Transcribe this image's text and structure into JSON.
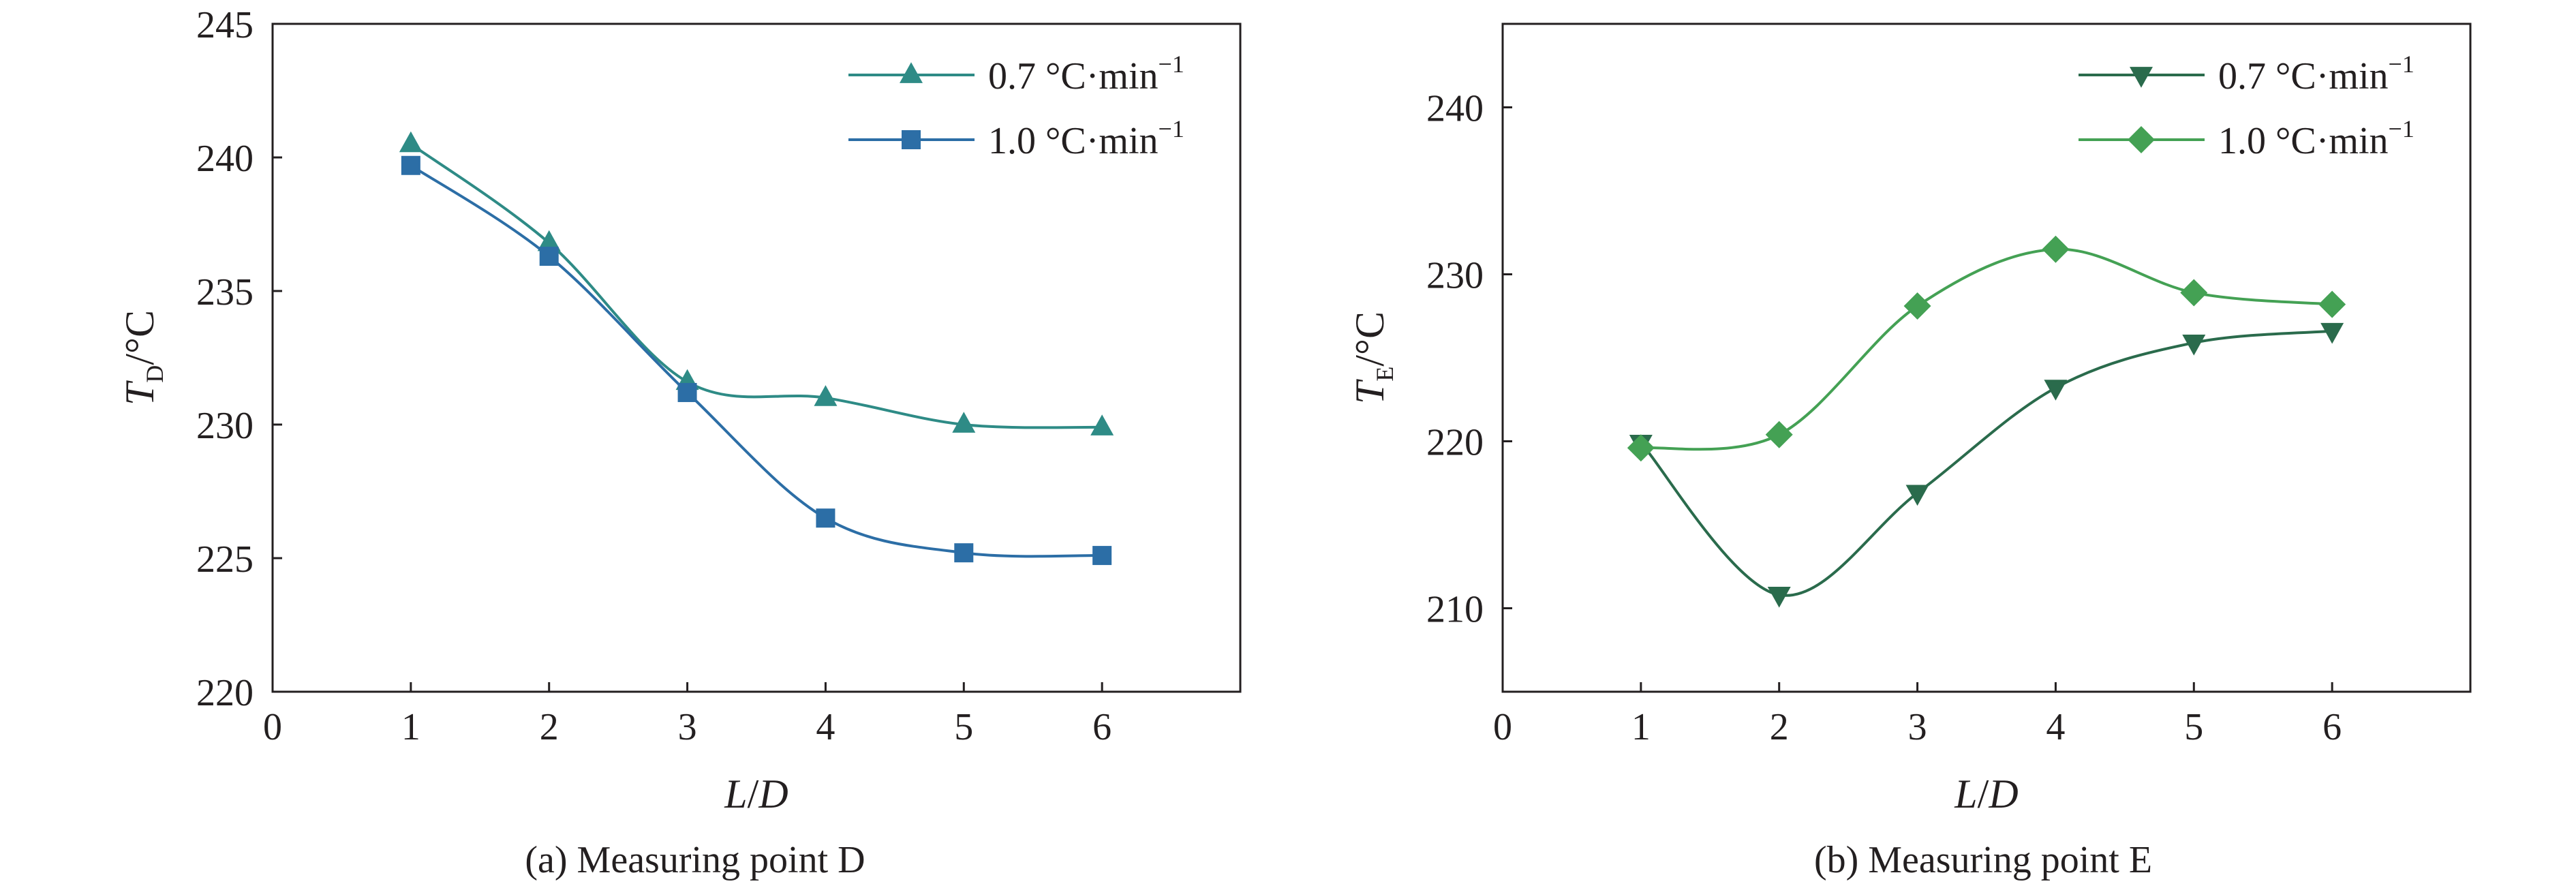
{
  "chart_data": [
    {
      "type": "line",
      "id": "a",
      "caption": "(a) Measuring point D",
      "xlabel": {
        "italic": "L",
        "plain": "/",
        "italic2": "D"
      },
      "ylabel": {
        "italic": "T",
        "sub": "D",
        "unit": "/°C"
      },
      "xlim": [
        0,
        7
      ],
      "ylim": [
        220,
        245
      ],
      "xticks": [
        0,
        1,
        2,
        3,
        4,
        5,
        6
      ],
      "yticks": [
        220,
        225,
        230,
        235,
        240,
        245
      ],
      "legend_position": "top-right",
      "series": [
        {
          "name": "0.7 °C·min",
          "sup": "−1",
          "marker": "triangle-up",
          "color": "#2e8b86",
          "x": [
            1,
            2,
            3,
            4,
            5,
            6
          ],
          "y": [
            240.5,
            236.8,
            231.6,
            231.0,
            230.0,
            229.9
          ]
        },
        {
          "name": "1.0 °C·min",
          "sup": "−1",
          "marker": "square",
          "color": "#2c6ea6",
          "x": [
            1,
            2,
            3,
            4,
            5,
            6
          ],
          "y": [
            239.7,
            236.3,
            231.2,
            226.5,
            225.2,
            225.1
          ]
        }
      ]
    },
    {
      "type": "line",
      "id": "b",
      "caption": "(b) Measuring point E",
      "xlabel": {
        "italic": "L",
        "plain": "/",
        "italic2": "D"
      },
      "ylabel": {
        "italic": "T",
        "sub": "E",
        "unit": "/°C"
      },
      "xlim": [
        0,
        7
      ],
      "ylim": [
        205,
        245
      ],
      "xticks": [
        0,
        1,
        2,
        3,
        4,
        5,
        6
      ],
      "yticks": [
        210,
        220,
        230,
        240
      ],
      "legend_position": "top-right",
      "series": [
        {
          "name": "0.7 °C·min",
          "sup": "−1",
          "marker": "triangle-down",
          "color": "#2a6b4c",
          "x": [
            1,
            2,
            3,
            4,
            5,
            6
          ],
          "y": [
            219.9,
            210.8,
            216.9,
            223.2,
            225.9,
            226.6
          ]
        },
        {
          "name": "1.0 °C·min",
          "sup": "−1",
          "marker": "diamond",
          "color": "#44a154",
          "x": [
            1,
            2,
            3,
            4,
            5,
            6
          ],
          "y": [
            219.6,
            220.4,
            228.1,
            231.5,
            228.9,
            228.2
          ]
        }
      ]
    }
  ]
}
